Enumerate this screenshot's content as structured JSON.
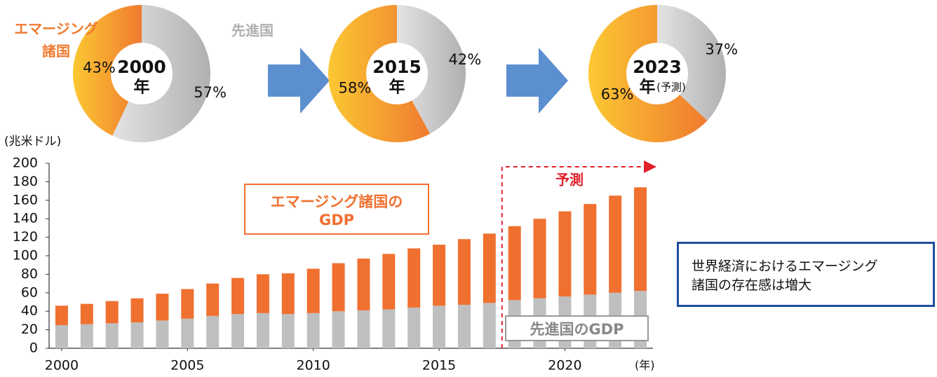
{
  "chart_data": [
    {
      "type": "donut",
      "labels": [
        "エマージング\n諸国",
        "先進国"
      ],
      "values": [
        43,
        57
      ],
      "value_labels": [
        "43%",
        "57%"
      ],
      "colors": [
        "#f07a30",
        "#b0b0b0"
      ],
      "center": "2000",
      "center_unit": "年"
    },
    {
      "type": "donut",
      "values": [
        58,
        42
      ],
      "value_labels": [
        "58%",
        "42%"
      ],
      "colors": [
        "#f07a30",
        "#b0b0b0"
      ],
      "center": "2015",
      "center_unit": "年"
    },
    {
      "type": "donut",
      "values": [
        63,
        37
      ],
      "value_labels": [
        "63%",
        "37%"
      ],
      "colors": [
        "#f07a30",
        "#b0b0b0"
      ],
      "center": "2023",
      "center_unit": "年",
      "center_note": "(予測)"
    },
    {
      "type": "stacked_bar",
      "y_label": "(兆米ドル)",
      "x_label": "(年)",
      "x": [
        2000,
        2001,
        2002,
        2003,
        2004,
        2005,
        2006,
        2007,
        2008,
        2009,
        2010,
        2011,
        2012,
        2013,
        2014,
        2015,
        2016,
        2017,
        2018,
        2019,
        2020,
        2021,
        2022,
        2023
      ],
      "series": [
        {
          "name": "先進国のGDP",
          "color": "#bfbfbf",
          "values": [
            25,
            26,
            27,
            28,
            30,
            32,
            35,
            37,
            38,
            37,
            38,
            40,
            41,
            42,
            44,
            46,
            47,
            49,
            52,
            54,
            56,
            58,
            60,
            62
          ]
        },
        {
          "name": "エマージング諸国の\nGDP",
          "color": "#f07030",
          "values": [
            21,
            22,
            24,
            26,
            29,
            32,
            35,
            39,
            42,
            44,
            48,
            52,
            56,
            60,
            64,
            66,
            71,
            75,
            80,
            86,
            92,
            98,
            105,
            112
          ]
        }
      ],
      "xlim": [
        1999.5,
        2023.5
      ],
      "xticks": [
        2000,
        2005,
        2010,
        2015,
        2020
      ],
      "ylim": [
        0,
        200
      ],
      "yticks": [
        0,
        20,
        40,
        60,
        80,
        100,
        120,
        140,
        160,
        180,
        200
      ],
      "forecast_label": "予測"
    }
  ],
  "callout": "世界経済におけるエマージング\n諸国の存在感は増大"
}
